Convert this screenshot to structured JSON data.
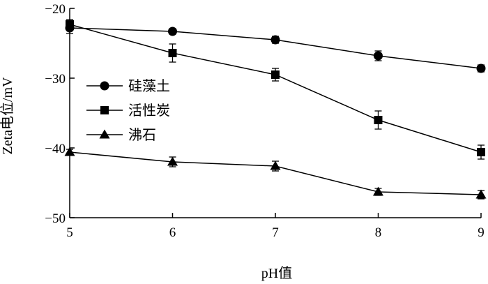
{
  "chart_data": {
    "type": "line",
    "xlabel": "pH值",
    "ylabel": "Zeta电位/mV",
    "xlim": [
      5,
      9
    ],
    "ylim": [
      -50,
      -20
    ],
    "x_ticks": [
      5,
      6,
      7,
      8,
      9
    ],
    "y_ticks": [
      -20,
      -30,
      -40,
      -50
    ],
    "x": [
      5,
      6,
      7,
      8,
      9
    ],
    "legend_position": "left",
    "grid": false,
    "series": [
      {
        "name": "硅藻土",
        "marker": "circle",
        "values": [
          -22.8,
          -23.3,
          -24.5,
          -26.8,
          -28.6
        ],
        "errors": [
          0.8,
          0.4,
          0.5,
          0.7,
          0.5
        ]
      },
      {
        "name": "活性炭",
        "marker": "square",
        "values": [
          -22.3,
          -26.4,
          -29.5,
          -36.0,
          -40.6
        ],
        "errors": [
          0.7,
          1.3,
          0.9,
          1.3,
          1.0
        ]
      },
      {
        "name": "沸石",
        "marker": "triangle",
        "values": [
          -40.6,
          -42.0,
          -42.6,
          -46.3,
          -46.7
        ],
        "errors": [
          0.4,
          0.7,
          0.7,
          0.5,
          0.6
        ]
      }
    ]
  }
}
